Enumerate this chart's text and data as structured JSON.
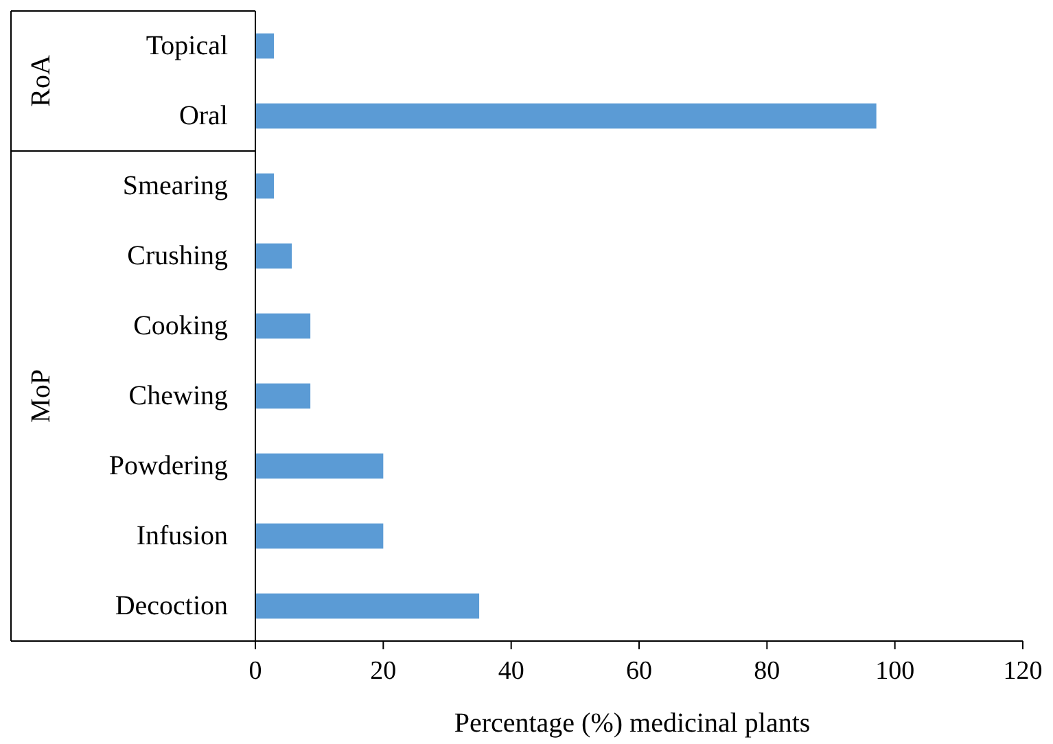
{
  "chart_data": {
    "type": "bar",
    "orientation": "horizontal",
    "xlabel": "Percentage (%) medicinal plants",
    "categories": [
      "Topical",
      "Oral",
      "Smearing",
      "Crushing",
      "Cooking",
      "Chewing",
      "Powdering",
      "Infusion",
      "Decoction"
    ],
    "values": [
      2.9,
      97.1,
      2.9,
      5.7,
      8.6,
      8.6,
      20,
      20,
      35
    ],
    "color": "#5b9bd5",
    "xlim": [
      0,
      120
    ],
    "xticks": [
      0,
      20,
      40,
      60,
      80,
      100,
      120
    ],
    "annotations": [
      "RoA",
      "MoP"
    ],
    "grid": false
  }
}
